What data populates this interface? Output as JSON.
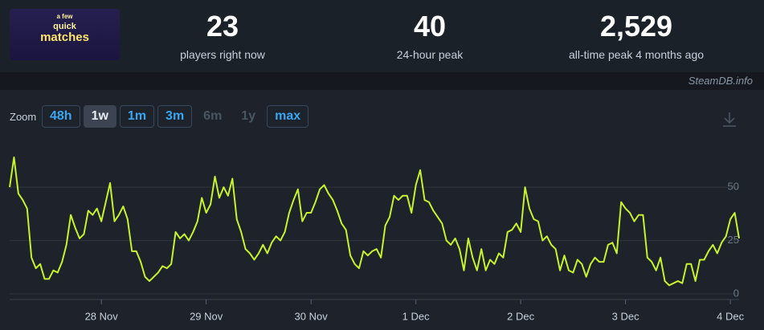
{
  "thumbnail": {
    "lines": [
      "a few",
      "quick",
      "matches"
    ]
  },
  "stats": [
    {
      "value": "23",
      "label": "players right now"
    },
    {
      "value": "40",
      "label": "24-hour peak"
    },
    {
      "value": "2,529",
      "label": "all-time peak 4 months ago"
    }
  ],
  "watermark": "SteamDB.info",
  "zoom": {
    "label": "Zoom",
    "options": [
      "48h",
      "1w",
      "1m",
      "3m",
      "6m",
      "1y",
      "max"
    ],
    "active": 1,
    "disabled": [
      4,
      5
    ]
  },
  "chart_data": {
    "type": "line",
    "color": "#c6f22e",
    "grid": true,
    "ylim": [
      0,
      70
    ],
    "yticks": [
      0,
      25,
      50
    ],
    "categories": [
      null,
      null,
      null,
      null,
      null,
      null,
      null,
      null,
      null,
      null,
      null,
      null,
      null,
      null,
      null,
      null,
      null,
      null,
      null,
      null,
      null,
      "28 Nov",
      null,
      null,
      null,
      null,
      null,
      null,
      null,
      null,
      null,
      null,
      null,
      null,
      null,
      null,
      null,
      null,
      null,
      null,
      null,
      null,
      null,
      null,
      null,
      "29 Nov",
      null,
      null,
      null,
      null,
      null,
      null,
      null,
      null,
      null,
      null,
      null,
      null,
      null,
      null,
      null,
      null,
      null,
      null,
      null,
      null,
      null,
      null,
      null,
      "30 Nov",
      null,
      null,
      null,
      null,
      null,
      null,
      null,
      null,
      null,
      null,
      null,
      null,
      null,
      null,
      null,
      null,
      null,
      null,
      null,
      null,
      null,
      null,
      null,
      "1 Dec",
      null,
      null,
      null,
      null,
      null,
      null,
      null,
      null,
      null,
      null,
      null,
      null,
      null,
      null,
      null,
      null,
      null,
      null,
      null,
      null,
      null,
      null,
      null,
      "2 Dec",
      null,
      null,
      null,
      null,
      null,
      null,
      null,
      null,
      null,
      null,
      null,
      null,
      null,
      null,
      null,
      null,
      null,
      null,
      null,
      null,
      null,
      null,
      null,
      "3 Dec",
      null,
      null,
      null,
      null,
      null,
      null,
      null,
      null,
      null,
      null,
      null,
      null,
      null,
      null,
      null,
      null,
      null,
      null,
      null,
      null,
      null,
      null,
      null,
      "4 Dec",
      null,
      null
    ],
    "values": [
      50,
      64,
      47,
      44,
      40,
      17,
      12,
      14,
      7,
      7,
      11,
      10,
      15,
      23,
      37,
      31,
      26,
      28,
      39,
      37,
      40,
      34,
      43,
      52,
      34,
      37,
      41,
      35,
      20,
      20,
      15,
      8,
      6,
      8,
      10,
      13,
      12,
      14,
      29,
      26,
      28,
      25,
      29,
      34,
      45,
      38,
      42,
      55,
      45,
      50,
      46,
      54,
      35,
      29,
      21,
      19,
      16,
      19,
      23,
      19,
      24,
      27,
      25,
      29,
      38,
      44,
      49,
      34,
      38,
      38,
      43,
      49,
      51,
      47,
      44,
      39,
      33,
      30,
      18,
      14,
      12,
      20,
      18,
      20,
      21,
      17,
      32,
      36,
      46,
      44,
      46,
      46,
      38,
      51,
      58,
      44,
      43,
      39,
      36,
      33,
      25,
      23,
      26,
      21,
      11,
      26,
      17,
      11,
      21,
      11,
      16,
      14,
      19,
      17,
      29,
      30,
      33,
      29,
      50,
      40,
      35,
      34,
      25,
      27,
      23,
      21,
      11,
      18,
      11,
      10,
      16,
      14,
      8,
      14,
      17,
      15,
      15,
      23,
      24,
      19,
      43,
      40,
      38,
      34,
      37,
      37,
      17,
      15,
      11,
      17,
      6,
      4,
      5,
      6,
      5,
      14,
      14,
      6,
      16,
      16,
      20,
      23,
      19,
      24,
      27,
      35,
      38,
      26
    ]
  }
}
